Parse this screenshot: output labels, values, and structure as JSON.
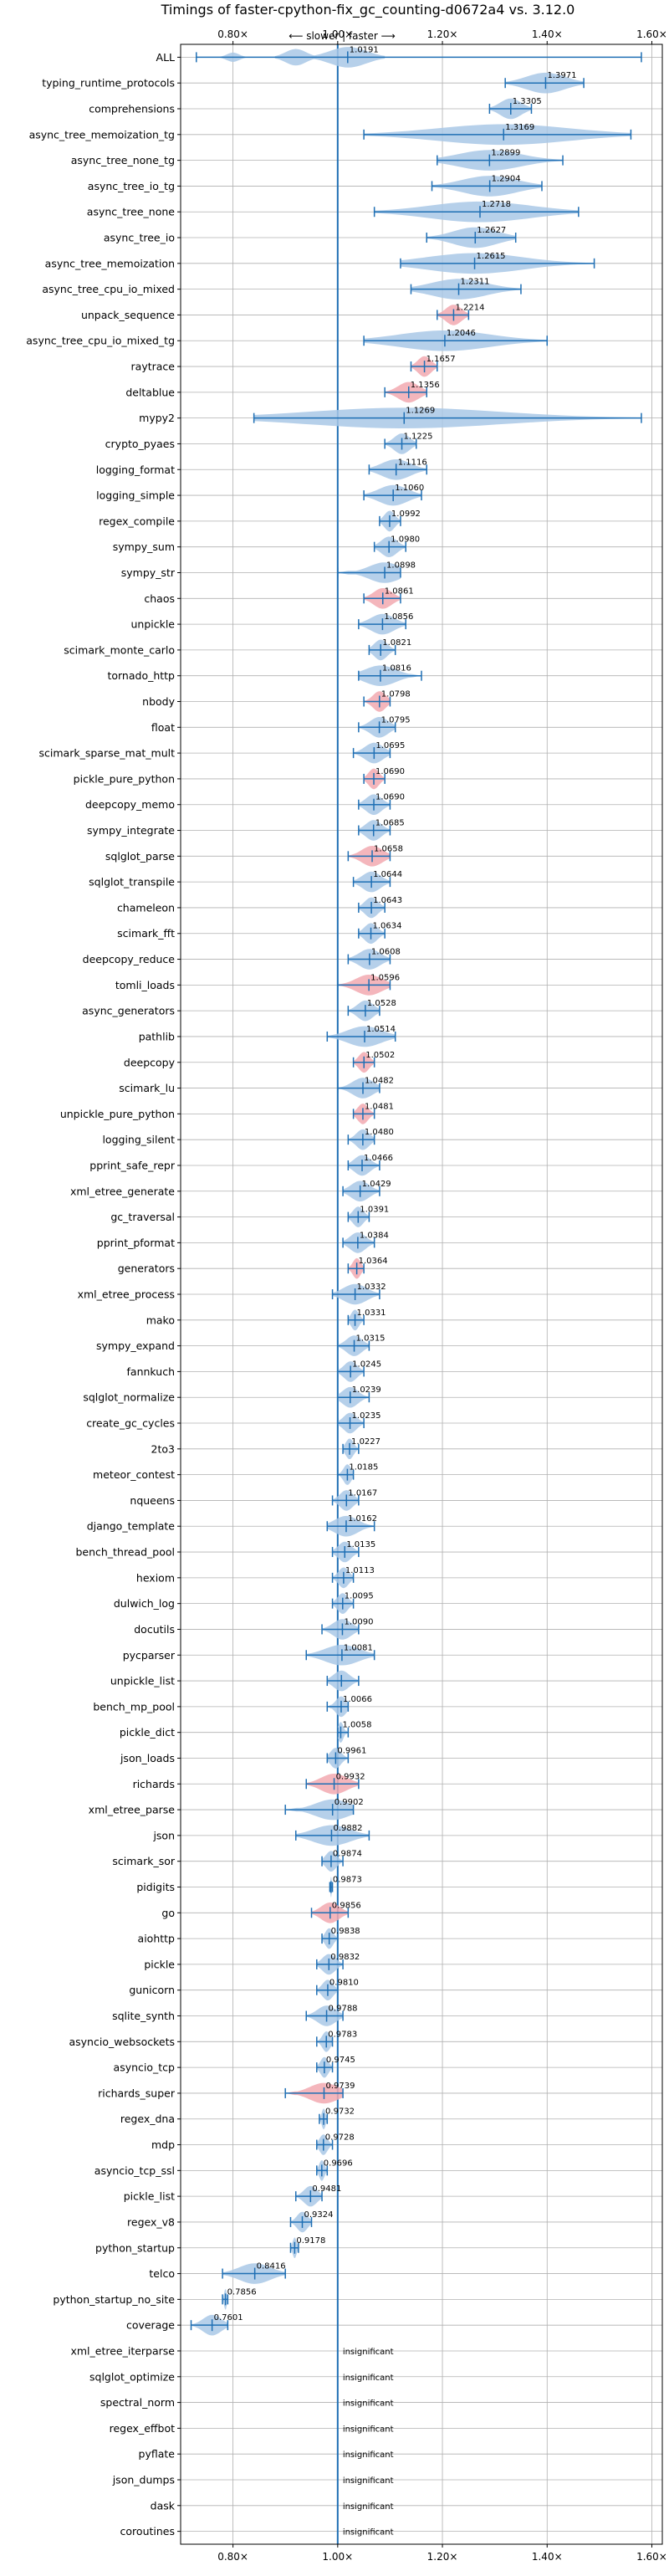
{
  "chart_data": {
    "type": "violin",
    "title": "Timings of faster-cpython-fix_gc_counting-d0672a4 vs. 3.12.0",
    "direction_label": "⟵ slower | faster ⟶",
    "xlim": [
      0.7,
      1.62
    ],
    "xticks": [
      0.8,
      1.0,
      1.2,
      1.4,
      1.6
    ],
    "xtick_labels": [
      "0.80×",
      "1.00×",
      "1.20×",
      "1.40×",
      "1.60×"
    ],
    "reference_line": 1.0,
    "grid": true,
    "colors": {
      "normal": "#a9c8e6",
      "highlight": "#f2a9b0",
      "errorbar": "#1f6fb4",
      "reference": "#1f6fb4",
      "grid": "#b0b0b0"
    },
    "benchmarks": [
      {
        "name": "ALL",
        "value": 1.0191,
        "label": "1.0191",
        "lo": 0.73,
        "hi": 1.58,
        "shape": "all"
      },
      {
        "name": "typing_runtime_protocols",
        "value": 1.3971,
        "label": "1.3971",
        "lo": 1.32,
        "hi": 1.47
      },
      {
        "name": "comprehensions",
        "value": 1.3305,
        "label": "1.3305",
        "lo": 1.29,
        "hi": 1.37
      },
      {
        "name": "async_tree_memoization_tg",
        "value": 1.3169,
        "label": "1.3169",
        "lo": 1.05,
        "hi": 1.56
      },
      {
        "name": "async_tree_none_tg",
        "value": 1.2899,
        "label": "1.2899",
        "lo": 1.19,
        "hi": 1.43
      },
      {
        "name": "async_tree_io_tg",
        "value": 1.2904,
        "label": "1.2904",
        "lo": 1.18,
        "hi": 1.39
      },
      {
        "name": "async_tree_none",
        "value": 1.2718,
        "label": "1.2718",
        "lo": 1.07,
        "hi": 1.46
      },
      {
        "name": "async_tree_io",
        "value": 1.2627,
        "label": "1.2627",
        "lo": 1.17,
        "hi": 1.34
      },
      {
        "name": "async_tree_memoization",
        "value": 1.2615,
        "label": "1.2615",
        "lo": 1.12,
        "hi": 1.49
      },
      {
        "name": "async_tree_cpu_io_mixed",
        "value": 1.2311,
        "label": "1.2311",
        "lo": 1.14,
        "hi": 1.35
      },
      {
        "name": "unpack_sequence",
        "value": 1.2214,
        "label": "1.2214",
        "lo": 1.19,
        "hi": 1.25,
        "highlight": true
      },
      {
        "name": "async_tree_cpu_io_mixed_tg",
        "value": 1.2046,
        "label": "1.2046",
        "lo": 1.05,
        "hi": 1.4
      },
      {
        "name": "raytrace",
        "value": 1.1657,
        "label": "1.1657",
        "lo": 1.14,
        "hi": 1.19,
        "highlight": true
      },
      {
        "name": "deltablue",
        "value": 1.1356,
        "label": "1.1356",
        "lo": 1.09,
        "hi": 1.17,
        "highlight": true
      },
      {
        "name": "mypy2",
        "value": 1.1269,
        "label": "1.1269",
        "lo": 0.84,
        "hi": 1.58
      },
      {
        "name": "crypto_pyaes",
        "value": 1.1225,
        "label": "1.1225",
        "lo": 1.09,
        "hi": 1.15
      },
      {
        "name": "logging_format",
        "value": 1.1116,
        "label": "1.1116",
        "lo": 1.06,
        "hi": 1.17
      },
      {
        "name": "logging_simple",
        "value": 1.106,
        "label": "1.1060",
        "lo": 1.05,
        "hi": 1.16
      },
      {
        "name": "regex_compile",
        "value": 1.0992,
        "label": "1.0992",
        "lo": 1.08,
        "hi": 1.12
      },
      {
        "name": "sympy_sum",
        "value": 1.098,
        "label": "1.0980",
        "lo": 1.07,
        "hi": 1.13
      },
      {
        "name": "sympy_str",
        "value": 1.0898,
        "label": "1.0898",
        "lo": 1.0,
        "hi": 1.12
      },
      {
        "name": "chaos",
        "value": 1.0861,
        "label": "1.0861",
        "lo": 1.05,
        "hi": 1.12,
        "highlight": true
      },
      {
        "name": "unpickle",
        "value": 1.0856,
        "label": "1.0856",
        "lo": 1.04,
        "hi": 1.13
      },
      {
        "name": "scimark_monte_carlo",
        "value": 1.0821,
        "label": "1.0821",
        "lo": 1.06,
        "hi": 1.11
      },
      {
        "name": "tornado_http",
        "value": 1.0816,
        "label": "1.0816",
        "lo": 1.04,
        "hi": 1.16
      },
      {
        "name": "nbody",
        "value": 1.0798,
        "label": "1.0798",
        "lo": 1.05,
        "hi": 1.1,
        "highlight": true
      },
      {
        "name": "float",
        "value": 1.0795,
        "label": "1.0795",
        "lo": 1.04,
        "hi": 1.11
      },
      {
        "name": "scimark_sparse_mat_mult",
        "value": 1.0695,
        "label": "1.0695",
        "lo": 1.03,
        "hi": 1.1
      },
      {
        "name": "pickle_pure_python",
        "value": 1.069,
        "label": "1.0690",
        "lo": 1.05,
        "hi": 1.09,
        "highlight": true
      },
      {
        "name": "deepcopy_memo",
        "value": 1.069,
        "label": "1.0690",
        "lo": 1.04,
        "hi": 1.1
      },
      {
        "name": "sympy_integrate",
        "value": 1.0685,
        "label": "1.0685",
        "lo": 1.04,
        "hi": 1.1
      },
      {
        "name": "sqlglot_parse",
        "value": 1.0658,
        "label": "1.0658",
        "lo": 1.02,
        "hi": 1.1,
        "highlight": true
      },
      {
        "name": "sqlglot_transpile",
        "value": 1.0644,
        "label": "1.0644",
        "lo": 1.03,
        "hi": 1.1
      },
      {
        "name": "chameleon",
        "value": 1.0643,
        "label": "1.0643",
        "lo": 1.04,
        "hi": 1.09
      },
      {
        "name": "scimark_fft",
        "value": 1.0634,
        "label": "1.0634",
        "lo": 1.04,
        "hi": 1.09
      },
      {
        "name": "deepcopy_reduce",
        "value": 1.0608,
        "label": "1.0608",
        "lo": 1.02,
        "hi": 1.1
      },
      {
        "name": "tomli_loads",
        "value": 1.0596,
        "label": "1.0596",
        "lo": 1.0,
        "hi": 1.1,
        "highlight": true
      },
      {
        "name": "async_generators",
        "value": 1.0528,
        "label": "1.0528",
        "lo": 1.02,
        "hi": 1.08
      },
      {
        "name": "pathlib",
        "value": 1.0514,
        "label": "1.0514",
        "lo": 0.98,
        "hi": 1.11
      },
      {
        "name": "deepcopy",
        "value": 1.0502,
        "label": "1.0502",
        "lo": 1.03,
        "hi": 1.07,
        "highlight": true
      },
      {
        "name": "scimark_lu",
        "value": 1.0482,
        "label": "1.0482",
        "lo": 1.0,
        "hi": 1.08
      },
      {
        "name": "unpickle_pure_python",
        "value": 1.0481,
        "label": "1.0481",
        "lo": 1.03,
        "hi": 1.07,
        "highlight": true
      },
      {
        "name": "logging_silent",
        "value": 1.048,
        "label": "1.0480",
        "lo": 1.02,
        "hi": 1.07
      },
      {
        "name": "pprint_safe_repr",
        "value": 1.0466,
        "label": "1.0466",
        "lo": 1.02,
        "hi": 1.08
      },
      {
        "name": "xml_etree_generate",
        "value": 1.0429,
        "label": "1.0429",
        "lo": 1.01,
        "hi": 1.08
      },
      {
        "name": "gc_traversal",
        "value": 1.0391,
        "label": "1.0391",
        "lo": 1.02,
        "hi": 1.06
      },
      {
        "name": "pprint_pformat",
        "value": 1.0384,
        "label": "1.0384",
        "lo": 1.01,
        "hi": 1.07
      },
      {
        "name": "generators",
        "value": 1.0364,
        "label": "1.0364",
        "lo": 1.02,
        "hi": 1.05,
        "highlight": true
      },
      {
        "name": "xml_etree_process",
        "value": 1.0332,
        "label": "1.0332",
        "lo": 0.99,
        "hi": 1.08
      },
      {
        "name": "mako",
        "value": 1.0331,
        "label": "1.0331",
        "lo": 1.02,
        "hi": 1.05
      },
      {
        "name": "sympy_expand",
        "value": 1.0315,
        "label": "1.0315",
        "lo": 1.0,
        "hi": 1.06
      },
      {
        "name": "fannkuch",
        "value": 1.0245,
        "label": "1.0245",
        "lo": 1.0,
        "hi": 1.05
      },
      {
        "name": "sqlglot_normalize",
        "value": 1.0239,
        "label": "1.0239",
        "lo": 1.0,
        "hi": 1.06
      },
      {
        "name": "create_gc_cycles",
        "value": 1.0235,
        "label": "1.0235",
        "lo": 1.0,
        "hi": 1.05
      },
      {
        "name": "2to3",
        "value": 1.0227,
        "label": "1.0227",
        "lo": 1.01,
        "hi": 1.04
      },
      {
        "name": "meteor_contest",
        "value": 1.0185,
        "label": "1.0185",
        "lo": 1.0,
        "hi": 1.03
      },
      {
        "name": "nqueens",
        "value": 1.0167,
        "label": "1.0167",
        "lo": 0.99,
        "hi": 1.04
      },
      {
        "name": "django_template",
        "value": 1.0162,
        "label": "1.0162",
        "lo": 0.98,
        "hi": 1.07
      },
      {
        "name": "bench_thread_pool",
        "value": 1.0135,
        "label": "1.0135",
        "lo": 0.99,
        "hi": 1.04
      },
      {
        "name": "hexiom",
        "value": 1.0113,
        "label": "1.0113",
        "lo": 0.99,
        "hi": 1.03
      },
      {
        "name": "dulwich_log",
        "value": 1.0095,
        "label": "1.0095",
        "lo": 0.99,
        "hi": 1.03
      },
      {
        "name": "docutils",
        "value": 1.009,
        "label": "1.0090",
        "lo": 0.97,
        "hi": 1.04
      },
      {
        "name": "pycparser",
        "value": 1.0081,
        "label": "1.0081",
        "lo": 0.94,
        "hi": 1.07
      },
      {
        "name": "unpickle_list",
        "value": 1.0071,
        "label": "",
        "lo": 0.98,
        "hi": 1.04
      },
      {
        "name": "bench_mp_pool",
        "value": 1.0066,
        "label": "1.0066",
        "lo": 0.98,
        "hi": 1.02
      },
      {
        "name": "pickle_dict",
        "value": 1.0058,
        "label": "1.0058",
        "lo": 1.0,
        "hi": 1.02
      },
      {
        "name": "json_loads",
        "value": 0.9961,
        "label": "0.9961",
        "lo": 0.98,
        "hi": 1.02
      },
      {
        "name": "richards",
        "value": 0.9932,
        "label": "0.9932",
        "lo": 0.94,
        "hi": 1.04,
        "highlight": true
      },
      {
        "name": "xml_etree_parse",
        "value": 0.9902,
        "label": "0.9902",
        "lo": 0.9,
        "hi": 1.03
      },
      {
        "name": "json",
        "value": 0.9882,
        "label": "0.9882",
        "lo": 0.92,
        "hi": 1.06
      },
      {
        "name": "scimark_sor",
        "value": 0.9874,
        "label": "0.9874",
        "lo": 0.97,
        "hi": 1.01
      },
      {
        "name": "pidigits",
        "value": 0.9873,
        "label": "0.9873",
        "lo": 0.985,
        "hi": 0.99
      },
      {
        "name": "go",
        "value": 0.9856,
        "label": "0.9856",
        "lo": 0.95,
        "hi": 1.02,
        "highlight": true
      },
      {
        "name": "aiohttp",
        "value": 0.9838,
        "label": "0.9838",
        "lo": 0.97,
        "hi": 1.0
      },
      {
        "name": "pickle",
        "value": 0.9832,
        "label": "0.9832",
        "lo": 0.96,
        "hi": 1.01
      },
      {
        "name": "gunicorn",
        "value": 0.981,
        "label": "0.9810",
        "lo": 0.96,
        "hi": 1.0
      },
      {
        "name": "sqlite_synth",
        "value": 0.9788,
        "label": "0.9788",
        "lo": 0.94,
        "hi": 1.01
      },
      {
        "name": "asyncio_websockets",
        "value": 0.9783,
        "label": "0.9783",
        "lo": 0.96,
        "hi": 0.99
      },
      {
        "name": "asyncio_tcp",
        "value": 0.9745,
        "label": "0.9745",
        "lo": 0.96,
        "hi": 0.99
      },
      {
        "name": "richards_super",
        "value": 0.9739,
        "label": "0.9739",
        "lo": 0.9,
        "hi": 1.01,
        "highlight": true
      },
      {
        "name": "regex_dna",
        "value": 0.9732,
        "label": "0.9732",
        "lo": 0.965,
        "hi": 0.98
      },
      {
        "name": "mdp",
        "value": 0.9728,
        "label": "0.9728",
        "lo": 0.96,
        "hi": 0.99
      },
      {
        "name": "asyncio_tcp_ssl",
        "value": 0.9696,
        "label": "0.9696",
        "lo": 0.96,
        "hi": 0.98
      },
      {
        "name": "pickle_list",
        "value": 0.9481,
        "label": "0.9481",
        "lo": 0.92,
        "hi": 0.97
      },
      {
        "name": "regex_v8",
        "value": 0.9324,
        "label": "0.9324",
        "lo": 0.91,
        "hi": 0.95
      },
      {
        "name": "python_startup",
        "value": 0.9178,
        "label": "0.9178",
        "lo": 0.91,
        "hi": 0.925
      },
      {
        "name": "telco",
        "value": 0.8416,
        "label": "0.8416",
        "lo": 0.78,
        "hi": 0.9
      },
      {
        "name": "python_startup_no_site",
        "value": 0.7856,
        "label": "0.7856",
        "lo": 0.78,
        "hi": 0.79
      },
      {
        "name": "coverage",
        "value": 0.7601,
        "label": "0.7601",
        "lo": 0.72,
        "hi": 0.79
      },
      {
        "name": "xml_etree_iterparse",
        "value": null,
        "label": "insignificant"
      },
      {
        "name": "sqlglot_optimize",
        "value": null,
        "label": "insignificant"
      },
      {
        "name": "spectral_norm",
        "value": null,
        "label": "insignificant"
      },
      {
        "name": "regex_effbot",
        "value": null,
        "label": "insignificant"
      },
      {
        "name": "pyflate",
        "value": null,
        "label": "insignificant"
      },
      {
        "name": "json_dumps",
        "value": null,
        "label": "insignificant"
      },
      {
        "name": "dask",
        "value": null,
        "label": "insignificant"
      },
      {
        "name": "coroutines",
        "value": null,
        "label": "insignificant"
      }
    ]
  }
}
